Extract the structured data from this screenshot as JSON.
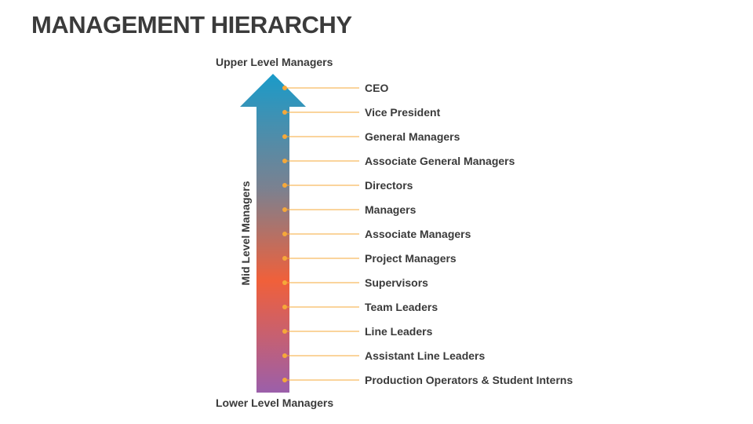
{
  "title": "MANAGEMENT HIERARCHY",
  "top_label": "Upper Level Managers",
  "side_label": "Mid Level Managers",
  "bottom_label": "Lower Level Managers",
  "levels": [
    "CEO",
    "Vice President",
    "General Managers",
    "Associate General Managers",
    "Directors",
    "Managers",
    "Associate Managers",
    "Project Managers",
    "Supervisors",
    "Team Leaders",
    "Line Leaders",
    "Assistant Line Leaders",
    "Production Operators & Student Interns"
  ],
  "colors": {
    "arrow_top": "#1a9bc9",
    "arrow_mid": "#7b8190",
    "arrow_orange": "#f0603a",
    "arrow_bottom": "#9b5faa",
    "connector": "#f5a83a"
  }
}
